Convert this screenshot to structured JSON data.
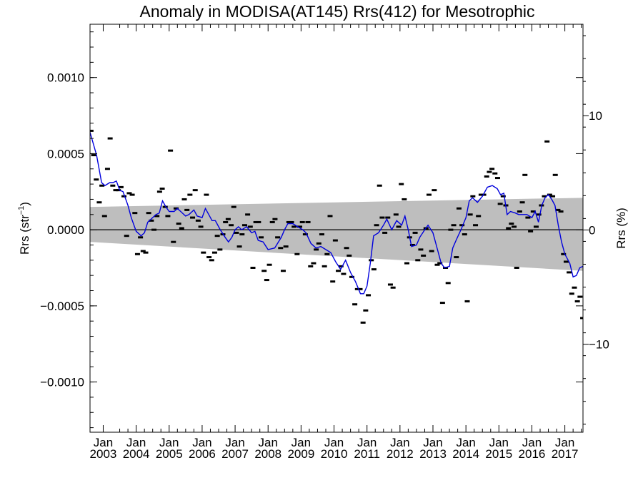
{
  "chart_data": {
    "type": "line",
    "title": "Anomaly in MODISA(AT145) Rrs(412) for Mesotrophic",
    "ylabel_left": "Rrs (str",
    "ylabel_left_sup": "−1",
    "ylabel_left_end": ")",
    "ylabel_right": "Rrs (%)",
    "xlim": [
      2002.6,
      2017.55
    ],
    "ylim": [
      -0.00133,
      0.00135
    ],
    "ylim_right": [
      -17.7,
      18
    ],
    "grid": false,
    "colors": {
      "series": "#0000dd",
      "band": "#bebebe",
      "points": "#000000",
      "zero_line": "#000000"
    },
    "y_ticks": [
      {
        "value": 0.001,
        "label": "0.0010"
      },
      {
        "value": 0.0005,
        "label": "0.0005"
      },
      {
        "value": 0.0,
        "label": "0.0000"
      },
      {
        "value": -0.0005,
        "label": "−0.0005"
      },
      {
        "value": -0.001,
        "label": "−0.0010"
      }
    ],
    "y_right_ticks": [
      {
        "value": 10,
        "label": "10"
      },
      {
        "value": 0,
        "label": "0"
      },
      {
        "value": -10,
        "label": "−10"
      }
    ],
    "x_ticks": [
      {
        "value": 2003,
        "month": "Jan",
        "year": "2003"
      },
      {
        "value": 2004,
        "month": "Jan",
        "year": "2004"
      },
      {
        "value": 2005,
        "month": "Jan",
        "year": "2005"
      },
      {
        "value": 2006,
        "month": "Jan",
        "year": "2006"
      },
      {
        "value": 2007,
        "month": "Jan",
        "year": "2007"
      },
      {
        "value": 2008,
        "month": "Jan",
        "year": "2008"
      },
      {
        "value": 2009,
        "month": "Jan",
        "year": "2009"
      },
      {
        "value": 2010,
        "month": "Jan",
        "year": "2010"
      },
      {
        "value": 2011,
        "month": "Jan",
        "year": "2011"
      },
      {
        "value": 2012,
        "month": "Jan",
        "year": "2012"
      },
      {
        "value": 2013,
        "month": "Jan",
        "year": "2013"
      },
      {
        "value": 2014,
        "month": "Jan",
        "year": "2014"
      },
      {
        "value": 2015,
        "month": "Jan",
        "year": "2015"
      },
      {
        "value": 2016,
        "month": "Jan",
        "year": "2016"
      },
      {
        "value": 2017,
        "month": "Jan",
        "year": "2017"
      }
    ],
    "band": {
      "x": [
        2002.6,
        2017.55
      ],
      "upper": [
        0.00015,
        0.00021
      ],
      "lower": [
        -8e-05,
        -0.00027
      ]
    },
    "monthly_points": [
      [
        2002.63,
        0.00065
      ],
      [
        2002.71,
        0.00049
      ],
      [
        2002.79,
        0.00033
      ],
      [
        2002.88,
        0.00018
      ],
      [
        2002.96,
        0.00029
      ],
      [
        2003.04,
        9e-05
      ],
      [
        2003.13,
        0.0004
      ],
      [
        2003.21,
        0.0006
      ],
      [
        2003.29,
        0.00029
      ],
      [
        2003.38,
        0.00026
      ],
      [
        2003.46,
        0.00026
      ],
      [
        2003.54,
        0.00028
      ],
      [
        2003.63,
        0.00022
      ],
      [
        2003.71,
        -4e-05
      ],
      [
        2003.79,
        0.00024
      ],
      [
        2003.88,
        0.00023
      ],
      [
        2003.96,
        0.00011
      ],
      [
        2004.04,
        -0.00016
      ],
      [
        2004.13,
        -5e-05
      ],
      [
        2004.21,
        -0.00014
      ],
      [
        2004.29,
        -0.00015
      ],
      [
        2004.38,
        0.00011
      ],
      [
        2004.46,
        6e-05
      ],
      [
        2004.54,
        0.0
      ],
      [
        2004.63,
        9e-05
      ],
      [
        2004.71,
        0.00025
      ],
      [
        2004.79,
        0.00027
      ],
      [
        2004.88,
        0.00015
      ],
      [
        2004.96,
        9e-05
      ],
      [
        2005.04,
        0.00052
      ],
      [
        2005.13,
        -8e-05
      ],
      [
        2005.21,
        0.00014
      ],
      [
        2005.29,
        4e-05
      ],
      [
        2005.38,
        1e-05
      ],
      [
        2005.46,
        0.0002
      ],
      [
        2005.54,
        0.00013
      ],
      [
        2005.63,
        0.00023
      ],
      [
        2005.71,
        8e-05
      ],
      [
        2005.79,
        0.00026
      ],
      [
        2005.88,
        6e-05
      ],
      [
        2005.96,
        2e-05
      ],
      [
        2006.04,
        -0.00015
      ],
      [
        2006.13,
        0.00023
      ],
      [
        2006.21,
        -0.00018
      ],
      [
        2006.29,
        -0.0002
      ],
      [
        2006.38,
        -0.00015
      ],
      [
        2006.46,
        -4e-05
      ],
      [
        2006.54,
        -0.00013
      ],
      [
        2006.63,
        -3e-05
      ],
      [
        2006.71,
        5e-05
      ],
      [
        2006.79,
        7e-05
      ],
      [
        2006.88,
        3e-05
      ],
      [
        2006.96,
        0.00015
      ],
      [
        2007.04,
        -2e-05
      ],
      [
        2007.13,
        -0.00011
      ],
      [
        2007.21,
        -3e-05
      ],
      [
        2007.29,
        3e-05
      ],
      [
        2007.38,
        0.0001
      ],
      [
        2007.46,
        2e-05
      ],
      [
        2007.54,
        -0.00025
      ],
      [
        2007.63,
        5e-05
      ],
      [
        2007.71,
        5e-05
      ],
      [
        2007.79,
        -5e-05
      ],
      [
        2007.88,
        -0.00027
      ],
      [
        2007.96,
        -0.00033
      ],
      [
        2008.04,
        -0.00023
      ],
      [
        2008.13,
        5e-05
      ],
      [
        2008.21,
        7e-05
      ],
      [
        2008.29,
        -5e-05
      ],
      [
        2008.38,
        -0.00012
      ],
      [
        2008.46,
        -0.00027
      ],
      [
        2008.54,
        -0.00011
      ],
      [
        2008.63,
        5e-05
      ],
      [
        2008.71,
        5e-05
      ],
      [
        2008.79,
        2e-05
      ],
      [
        2008.88,
        -0.00016
      ],
      [
        2008.96,
        2e-05
      ],
      [
        2009.04,
        5e-05
      ],
      [
        2009.13,
        -3e-05
      ],
      [
        2009.21,
        5e-05
      ],
      [
        2009.29,
        -0.00024
      ],
      [
        2009.38,
        -0.00022
      ],
      [
        2009.46,
        -0.00013
      ],
      [
        2009.54,
        -9e-05
      ],
      [
        2009.63,
        -3e-05
      ],
      [
        2009.71,
        -0.00024
      ],
      [
        2009.79,
        -0.00016
      ],
      [
        2009.88,
        9e-05
      ],
      [
        2009.96,
        -0.00034
      ],
      [
        2010.04,
        -7e-05
      ],
      [
        2010.13,
        -0.00027
      ],
      [
        2010.21,
        -0.00024
      ],
      [
        2010.29,
        -0.00029
      ],
      [
        2010.38,
        -0.00012
      ],
      [
        2010.46,
        -0.00017
      ],
      [
        2010.54,
        -0.00031
      ],
      [
        2010.63,
        -0.00049
      ],
      [
        2010.71,
        -0.00039
      ],
      [
        2010.79,
        -0.00039
      ],
      [
        2010.88,
        -0.00061
      ],
      [
        2010.96,
        -0.00053
      ],
      [
        2011.04,
        -0.00043
      ],
      [
        2011.13,
        -0.0002
      ],
      [
        2011.21,
        -0.00026
      ],
      [
        2011.29,
        3e-05
      ],
      [
        2011.38,
        0.00029
      ],
      [
        2011.46,
        8e-05
      ],
      [
        2011.54,
        -2e-05
      ],
      [
        2011.63,
        8e-05
      ],
      [
        2011.71,
        -0.00036
      ],
      [
        2011.79,
        -0.00038
      ],
      [
        2011.88,
        0.0001
      ],
      [
        2011.96,
        2e-05
      ],
      [
        2012.04,
        0.0003
      ],
      [
        2012.13,
        0.0002
      ],
      [
        2012.21,
        -0.00022
      ],
      [
        2012.29,
        -5e-05
      ],
      [
        2012.38,
        -0.0001
      ],
      [
        2012.46,
        -2e-05
      ],
      [
        2012.54,
        -0.0002
      ],
      [
        2012.63,
        -0.00013
      ],
      [
        2012.71,
        -0.00017
      ],
      [
        2012.79,
        1e-05
      ],
      [
        2012.88,
        0.00023
      ],
      [
        2012.96,
        -0.00014
      ],
      [
        2013.04,
        0.00026
      ],
      [
        2013.13,
        -0.00023
      ],
      [
        2013.21,
        -0.00022
      ],
      [
        2013.29,
        -0.00048
      ],
      [
        2013.38,
        -0.00025
      ],
      [
        2013.46,
        -0.00035
      ],
      [
        2013.54,
        0.0
      ],
      [
        2013.63,
        3e-05
      ],
      [
        2013.71,
        -0.00018
      ],
      [
        2013.79,
        0.00014
      ],
      [
        2013.88,
        3e-05
      ],
      [
        2013.96,
        -3e-05
      ],
      [
        2014.04,
        -0.00047
      ],
      [
        2014.13,
        0.0001
      ],
      [
        2014.21,
        0.00022
      ],
      [
        2014.29,
        3e-05
      ],
      [
        2014.38,
        9e-05
      ],
      [
        2014.46,
        0.00023
      ],
      [
        2014.54,
        0.00023
      ],
      [
        2014.63,
        0.00035
      ],
      [
        2014.71,
        0.00038
      ],
      [
        2014.79,
        0.0004
      ],
      [
        2014.88,
        0.00037
      ],
      [
        2014.96,
        0.00034
      ],
      [
        2015.04,
        0.00017
      ],
      [
        2015.13,
        0.00022
      ],
      [
        2015.21,
        0.00016
      ],
      [
        2015.29,
        1e-05
      ],
      [
        2015.38,
        4e-05
      ],
      [
        2015.46,
        2e-05
      ],
      [
        2015.54,
        -0.00025
      ],
      [
        2015.63,
        0.00012
      ],
      [
        2015.71,
        0.00018
      ],
      [
        2015.79,
        0.00036
      ],
      [
        2015.88,
        8e-05
      ],
      [
        2015.96,
        -1e-05
      ],
      [
        2016.04,
        0.00012
      ],
      [
        2016.13,
        2e-05
      ],
      [
        2016.21,
        0.0001
      ],
      [
        2016.29,
        0.00016
      ],
      [
        2016.38,
        0.00022
      ],
      [
        2016.46,
        0.00058
      ],
      [
        2016.54,
        0.00023
      ],
      [
        2016.63,
        0.00022
      ],
      [
        2016.71,
        0.00036
      ],
      [
        2016.79,
        0.00013
      ],
      [
        2016.88,
        0.00012
      ],
      [
        2016.96,
        -0.00016
      ],
      [
        2017.04,
        -0.00021
      ],
      [
        2017.13,
        -0.00028
      ],
      [
        2017.21,
        -0.00042
      ],
      [
        2017.29,
        -0.00038
      ],
      [
        2017.38,
        -0.00047
      ],
      [
        2017.46,
        -0.00044
      ],
      [
        2017.54,
        -0.00058
      ]
    ],
    "smoothed_series": {
      "x": [
        2002.6,
        2002.8,
        2002.95,
        2003.05,
        2003.2,
        2003.3,
        2003.4,
        2003.5,
        2003.6,
        2003.75,
        2003.85,
        2004.0,
        2004.15,
        2004.25,
        2004.35,
        2004.5,
        2004.6,
        2004.7,
        2004.8,
        2004.9,
        2005.0,
        2005.15,
        2005.25,
        2005.35,
        2005.5,
        2005.6,
        2005.75,
        2005.85,
        2006.0,
        2006.1,
        2006.2,
        2006.3,
        2006.4,
        2006.55,
        2006.7,
        2006.8,
        2006.9,
        2007.0,
        2007.1,
        2007.2,
        2007.35,
        2007.5,
        2007.6,
        2007.7,
        2007.85,
        2008.0,
        2008.2,
        2008.4,
        2008.5,
        2008.6,
        2008.75,
        2008.9,
        2009.05,
        2009.15,
        2009.3,
        2009.45,
        2009.6,
        2009.75,
        2009.9,
        2010.05,
        2010.2,
        2010.35,
        2010.5,
        2010.65,
        2010.8,
        2010.9,
        2011.0,
        2011.1,
        2011.2,
        2011.35,
        2011.5,
        2011.6,
        2011.75,
        2011.9,
        2012.05,
        2012.15,
        2012.25,
        2012.35,
        2012.5,
        2012.6,
        2012.75,
        2012.85,
        2013.0,
        2013.15,
        2013.25,
        2013.35,
        2013.5,
        2013.6,
        2013.7,
        2013.85,
        2014.0,
        2014.1,
        2014.2,
        2014.35,
        2014.5,
        2014.65,
        2014.8,
        2014.95,
        2015.05,
        2015.15,
        2015.25,
        2015.35,
        2015.5,
        2015.6,
        2015.75,
        2015.85,
        2016.0,
        2016.1,
        2016.2,
        2016.3,
        2016.4,
        2016.5,
        2016.6,
        2016.7,
        2016.8,
        2016.9,
        2017.0,
        2017.15,
        2017.25,
        2017.35,
        2017.45,
        2017.55
      ],
      "y": [
        0.00064,
        0.00049,
        0.00031,
        0.00029,
        0.00031,
        0.00031,
        0.00032,
        0.00026,
        0.00025,
        0.00016,
        8e-05,
        -1e-05,
        -4e-05,
        -2e-05,
        5e-05,
        8e-05,
        0.0001,
        0.00011,
        0.00019,
        0.00015,
        0.00012,
        0.00012,
        0.00014,
        0.00012,
        9e-05,
        0.0001,
        0.00013,
        9e-05,
        8e-05,
        0.00014,
        0.0001,
        6e-05,
        6e-05,
        0.0,
        -5e-05,
        -8e-05,
        -5e-05,
        0.0,
        2e-05,
        0.0,
        2e-05,
        -2e-05,
        -1e-05,
        -7e-05,
        -8e-05,
        -0.00013,
        -0.00012,
        -5e-05,
        0.0,
        4e-05,
        4e-05,
        2e-05,
        0.0,
        -2e-05,
        -9e-05,
        -0.00012,
        -0.00011,
        -0.00013,
        -0.00015,
        -0.00021,
        -0.00026,
        -0.0002,
        -0.00028,
        -0.00034,
        -0.00042,
        -0.00042,
        -0.00037,
        -0.00022,
        -4e-05,
        -2e-05,
        3e-05,
        7e-05,
        0.0,
        6e-05,
        3e-05,
        9e-05,
        0.0,
        -0.00011,
        -0.0001,
        -5e-05,
        0.0,
        3e-05,
        -2e-05,
        -0.00014,
        -0.00022,
        -0.00025,
        -0.00024,
        -0.00012,
        -7e-05,
        0.0,
        8e-05,
        0.00019,
        0.00021,
        0.00018,
        0.00022,
        0.00028,
        0.00029,
        0.00027,
        0.00023,
        0.00024,
        0.0001,
        0.00012,
        0.00011,
        0.0001,
        0.0001,
        0.0001,
        8e-05,
        0.00012,
        5e-05,
        0.00016,
        0.00021,
        0.00023,
        0.0002,
        0.00016,
        3e-05,
        -8e-05,
        -0.00016,
        -0.00022,
        -0.00031,
        -0.0003,
        -0.00025,
        -0.00024
      ]
    }
  }
}
